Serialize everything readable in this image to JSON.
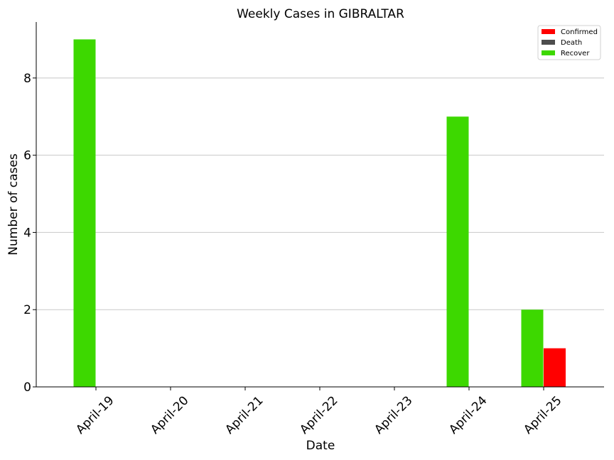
{
  "chart_data": {
    "type": "bar",
    "title": "Weekly Cases in GIBRALTAR",
    "xlabel": "Date",
    "ylabel": "Number of cases",
    "categories": [
      "April-19",
      "April-20",
      "April-21",
      "April-22",
      "April-23",
      "April-24",
      "April-25"
    ],
    "series": [
      {
        "name": "Confirmed",
        "color": "#ff0000",
        "values": [
          0,
          0,
          0,
          0,
          0,
          0,
          1
        ]
      },
      {
        "name": "Death",
        "color": "#4d4d4d",
        "values": [
          0,
          0,
          0,
          0,
          0,
          0,
          0
        ]
      },
      {
        "name": "Recover",
        "color": "#3dd800",
        "values": [
          9,
          0,
          0,
          0,
          0,
          7,
          2
        ]
      }
    ],
    "ylim": [
      0,
      9.45
    ],
    "yticks": [
      0,
      2,
      4,
      6,
      8
    ],
    "grid": "y",
    "legend": "top-right"
  }
}
